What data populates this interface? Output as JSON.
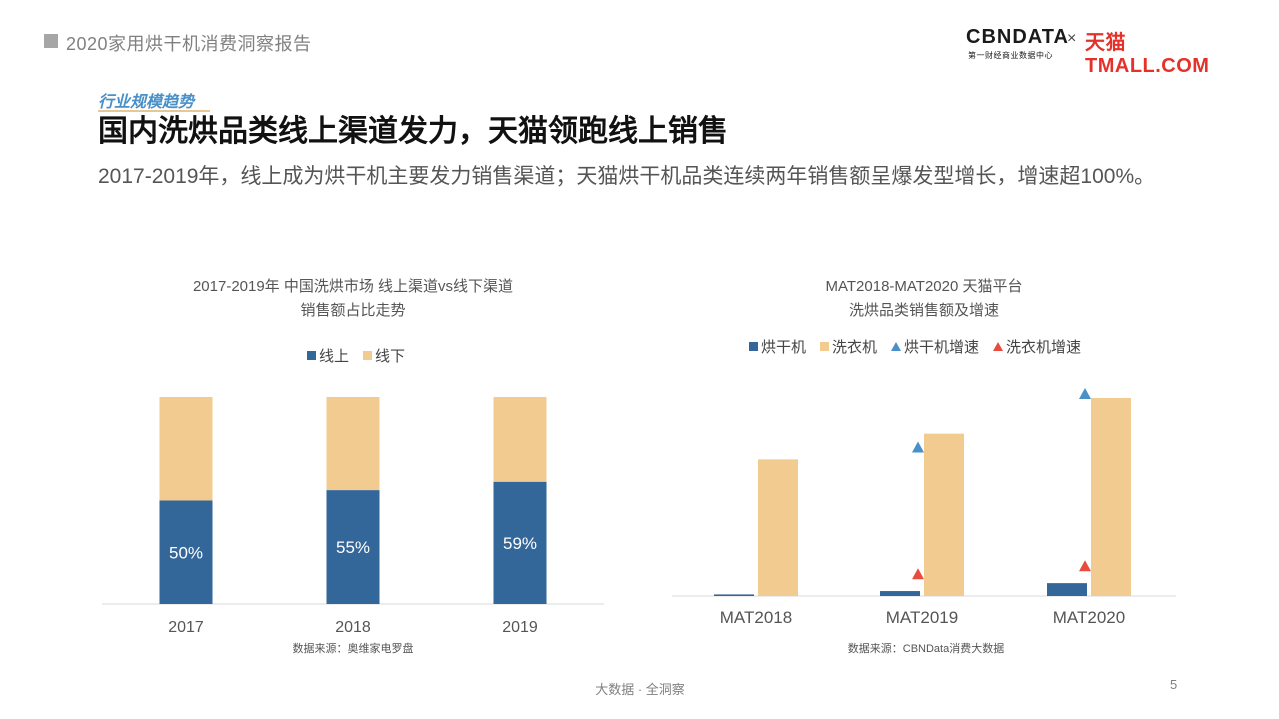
{
  "header": {
    "report_title": "2020家用烘干机消费洞察报告",
    "logo": {
      "cbn": "CBNDATA",
      "cbn_sub": "第一财经商业数据中心",
      "times": "×",
      "tmall": "天猫TMALL.COM"
    }
  },
  "section_tag": "行业规模趋势",
  "headline": "国内洗烘品类线上渠道发力，天猫领跑线上销售",
  "subline": "2017-2019年，线上成为烘干机主要发力销售渠道；天猫烘干机品类连续两年销售额呈爆发型增长，增速超100%。",
  "colors": {
    "online": "#336699",
    "offline": "#f2cb90",
    "dryer": "#336699",
    "washer": "#f2cb90",
    "dryer_growth": "#4a90c8",
    "washer_growth": "#e84c3d"
  },
  "chart_data": [
    {
      "type": "bar",
      "stacked": true,
      "title_line1": "2017-2019年 中国洗烘市场 线上渠道vs线下渠道",
      "title_line2": "销售额占比走势",
      "categories": [
        "2017",
        "2018",
        "2019"
      ],
      "series": [
        {
          "name": "线上",
          "values": [
            50,
            55,
            59
          ],
          "labels": [
            "50%",
            "55%",
            "59%"
          ]
        },
        {
          "name": "线下",
          "values": [
            50,
            45,
            41
          ]
        }
      ],
      "ylim": [
        0,
        100
      ],
      "legend": "top-center",
      "grid": false,
      "source": "数据来源：奥维家电罗盘"
    },
    {
      "type": "bar",
      "title_line1": "MAT2018-MAT2020 天猫平台",
      "title_line2": "洗烘品类销售额及增速",
      "categories": [
        "MAT2018",
        "MAT2019",
        "MAT2020"
      ],
      "series": [
        {
          "name": "烘干机",
          "values": [
            0.8,
            2.5,
            6.5
          ]
        },
        {
          "name": "洗衣机",
          "values": [
            69,
            82,
            100
          ]
        }
      ],
      "markers": [
        {
          "name": "烘干机增速",
          "values": [
            null,
            75,
            102
          ]
        },
        {
          "name": "洗衣机增速",
          "values": [
            null,
            11,
            15
          ]
        }
      ],
      "ylim": [
        0,
        105
      ],
      "legend": "top-center",
      "grid": false,
      "source": "数据来源：CBNData消费大数据"
    }
  ],
  "footer": {
    "center": "大数据 · 全洞察",
    "page": "5"
  }
}
